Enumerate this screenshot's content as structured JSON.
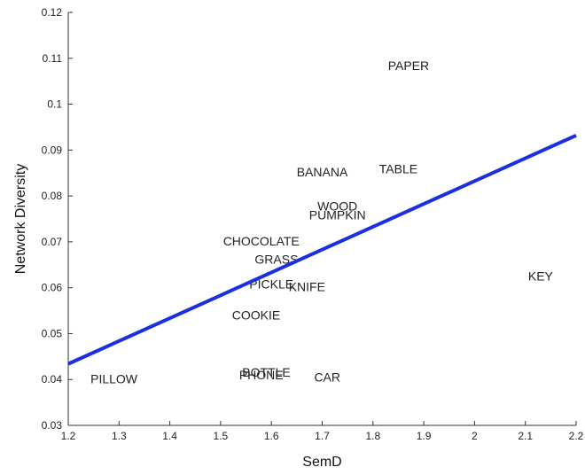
{
  "chart_data": {
    "type": "scatter",
    "title": "",
    "xlabel": "SemD",
    "ylabel": "Network Diversity",
    "xlim": [
      1.2,
      2.2
    ],
    "ylim": [
      0.03,
      0.12
    ],
    "xticks": [
      "1.2",
      "1.3",
      "1.4",
      "1.5",
      "1.6",
      "1.7",
      "1.8",
      "1.9",
      "2",
      "2.1",
      "2.2"
    ],
    "yticks": [
      "0.03",
      "0.04",
      "0.05",
      "0.06",
      "0.07",
      "0.08",
      "0.09",
      "0.1",
      "0.11",
      "0.12"
    ],
    "grid": false,
    "legend": "none",
    "points": [
      {
        "label": "PAPER",
        "x": 1.87,
        "y": 0.1084
      },
      {
        "label": "TABLE",
        "x": 1.85,
        "y": 0.0859
      },
      {
        "label": "BANANA",
        "x": 1.7,
        "y": 0.0852
      },
      {
        "label": "WOOD",
        "x": 1.73,
        "y": 0.0778
      },
      {
        "label": "PUMPKIN",
        "x": 1.73,
        "y": 0.0759
      },
      {
        "label": "CHOCOLATE",
        "x": 1.58,
        "y": 0.0702
      },
      {
        "label": "GRASS",
        "x": 1.61,
        "y": 0.0662
      },
      {
        "label": "PICKLE",
        "x": 1.6,
        "y": 0.0608
      },
      {
        "label": "KNIFE",
        "x": 1.67,
        "y": 0.0602
      },
      {
        "label": "KEY",
        "x": 2.13,
        "y": 0.0625
      },
      {
        "label": "COOKIE",
        "x": 1.57,
        "y": 0.054
      },
      {
        "label": "BOTTLE",
        "x": 1.59,
        "y": 0.0416
      },
      {
        "label": "PHONE",
        "x": 1.58,
        "y": 0.041
      },
      {
        "label": "CAR",
        "x": 1.71,
        "y": 0.0405
      },
      {
        "label": "PILLOW",
        "x": 1.29,
        "y": 0.0401
      }
    ],
    "fit_line": {
      "x": [
        1.2,
        2.2
      ],
      "y": [
        0.0434,
        0.0932
      ],
      "color": "#1a2fe0"
    }
  }
}
